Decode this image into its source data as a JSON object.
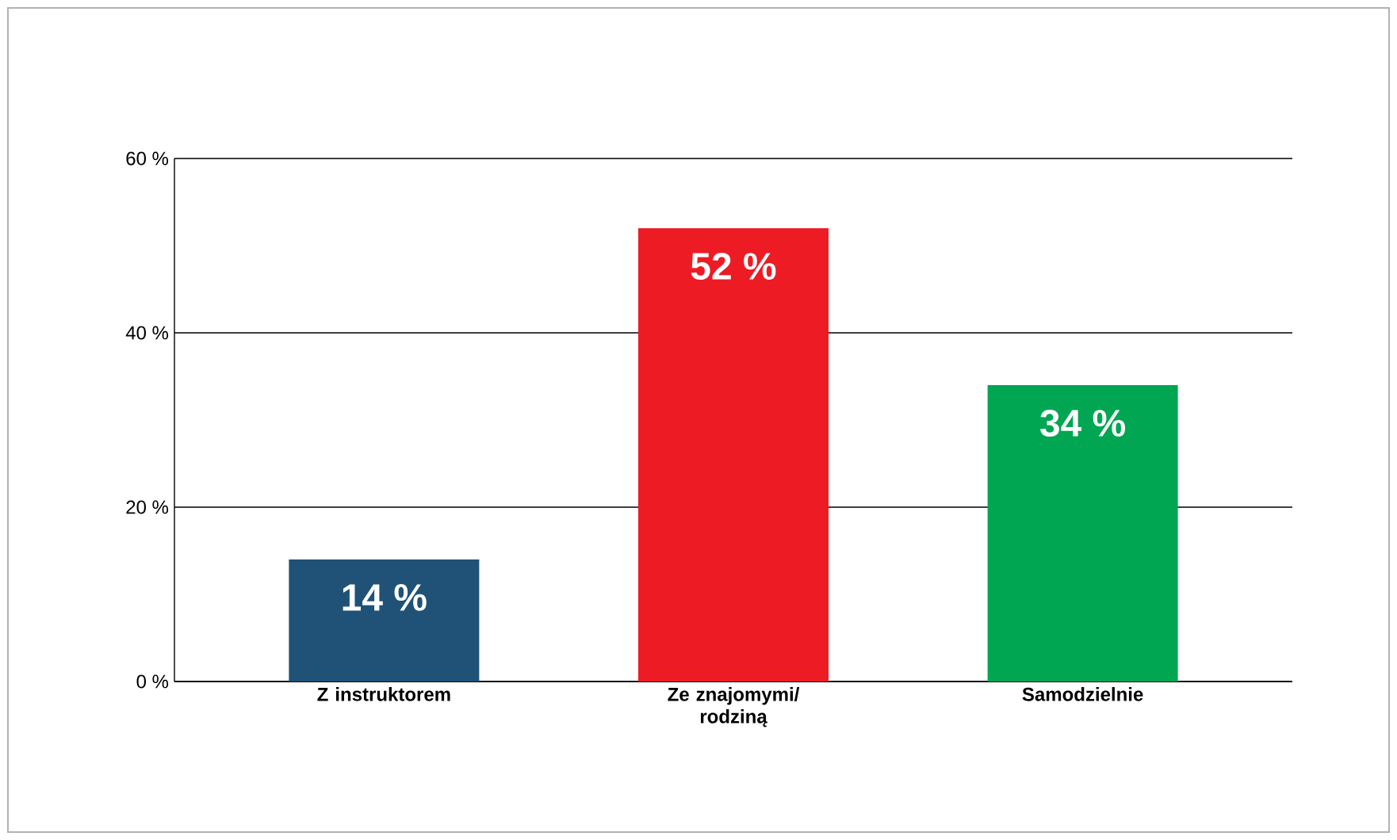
{
  "chart_data": {
    "type": "bar",
    "categories": [
      "Z instruktorem",
      "Ze znajomymi/ rodziną",
      "Samodzielnie"
    ],
    "values": [
      14,
      52,
      34
    ],
    "colors": [
      "#1f5276",
      "#ed1c24",
      "#00a651"
    ],
    "value_labels": [
      "14 %",
      "52 %",
      "34 %"
    ],
    "ylim": [
      0,
      60
    ],
    "yticks": [
      {
        "value": 0,
        "label": "0 %"
      },
      {
        "value": 20,
        "label": "20 %"
      },
      {
        "value": 40,
        "label": "40 %"
      },
      {
        "value": 60,
        "label": "60 %"
      }
    ],
    "grid": "y"
  }
}
